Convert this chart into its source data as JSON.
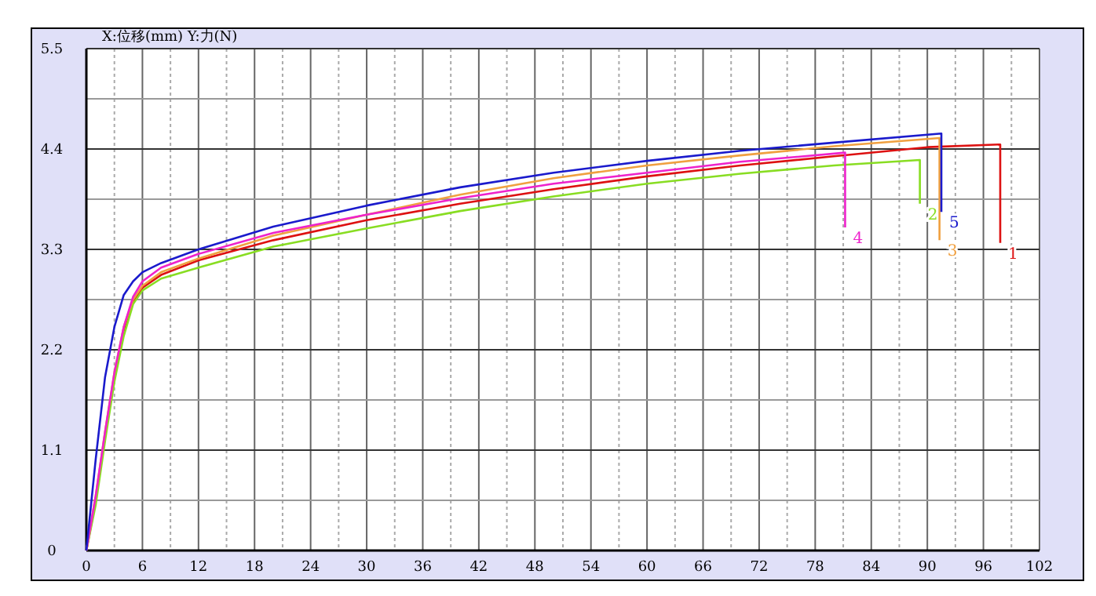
{
  "chart_data": {
    "type": "line",
    "title": "X:位移(mm)  Y:力(N)",
    "xlim": [
      0,
      102
    ],
    "xticks": [
      0,
      6,
      12,
      18,
      24,
      30,
      36,
      42,
      48,
      54,
      60,
      66,
      72,
      78,
      84,
      90,
      96,
      102
    ],
    "ylim": [
      0,
      5.5
    ],
    "yticks": [
      0,
      1.1,
      2.2,
      3.3,
      4.4,
      5.5
    ],
    "grid": true,
    "legend": false,
    "marker": "none",
    "line_style": "solid",
    "series": [
      {
        "name": "1",
        "color": "#dd1111",
        "x": [
          0,
          1,
          2,
          3,
          4,
          5,
          6,
          8,
          12,
          20,
          30,
          40,
          50,
          60,
          70,
          80,
          90,
          97.8,
          97.8
        ],
        "values": [
          0,
          0.55,
          1.25,
          1.9,
          2.4,
          2.72,
          2.88,
          3.02,
          3.18,
          3.4,
          3.62,
          3.8,
          3.96,
          4.1,
          4.22,
          4.32,
          4.42,
          4.45,
          3.37
        ]
      },
      {
        "name": "2",
        "color": "#88dd22",
        "x": [
          0,
          1,
          2,
          3,
          4,
          5,
          6,
          8,
          12,
          20,
          30,
          40,
          50,
          60,
          70,
          80,
          89.2,
          89.2
        ],
        "values": [
          0,
          0.5,
          1.2,
          1.85,
          2.35,
          2.7,
          2.85,
          2.98,
          3.1,
          3.33,
          3.53,
          3.72,
          3.88,
          4.02,
          4.13,
          4.22,
          4.28,
          3.8
        ]
      },
      {
        "name": "3",
        "color": "#f0a040",
        "x": [
          0,
          1,
          2,
          3,
          4,
          5,
          6,
          8,
          12,
          20,
          30,
          40,
          50,
          60,
          70,
          80,
          91.3,
          91.3
        ],
        "values": [
          0,
          0.6,
          1.3,
          1.95,
          2.45,
          2.75,
          2.9,
          3.05,
          3.2,
          3.45,
          3.68,
          3.9,
          4.08,
          4.22,
          4.33,
          4.43,
          4.52,
          3.4
        ]
      },
      {
        "name": "4",
        "color": "#ee22cc",
        "x": [
          0,
          1,
          2,
          3,
          4,
          5,
          6,
          8,
          12,
          20,
          30,
          40,
          50,
          60,
          70,
          81.2,
          81.2
        ],
        "values": [
          0,
          0.6,
          1.3,
          1.95,
          2.45,
          2.78,
          2.95,
          3.1,
          3.25,
          3.48,
          3.68,
          3.86,
          4.02,
          4.14,
          4.26,
          4.36,
          3.54
        ]
      },
      {
        "name": "5",
        "color": "#1a1acc",
        "x": [
          0,
          1,
          2,
          3,
          4,
          5,
          6,
          8,
          12,
          20,
          30,
          40,
          50,
          60,
          70,
          80,
          91.5,
          91.5
        ],
        "values": [
          0,
          1.0,
          1.9,
          2.45,
          2.8,
          2.95,
          3.05,
          3.15,
          3.3,
          3.55,
          3.78,
          3.98,
          4.14,
          4.27,
          4.38,
          4.47,
          4.57,
          3.71
        ]
      }
    ]
  }
}
